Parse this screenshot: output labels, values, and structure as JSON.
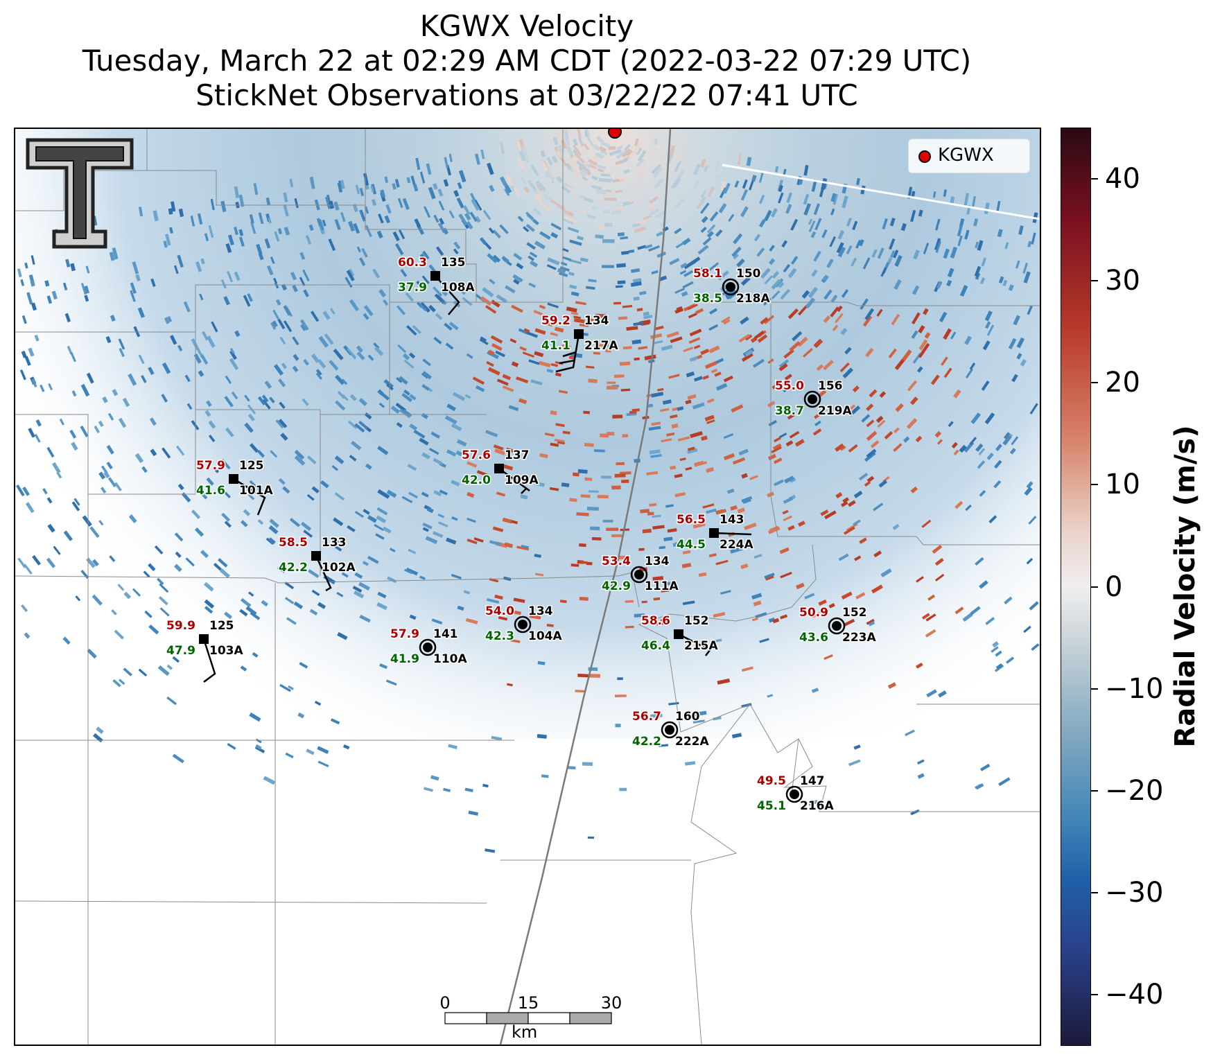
{
  "title": {
    "line1": "KGWX Velocity",
    "line2": "Tuesday, March 22 at 02:29 AM CDT (2022-03-22 07:29 UTC)",
    "line3": "StickNet Observations at 03/22/22 07:41 UTC"
  },
  "legend": {
    "label": "KGWX",
    "marker_color": "#e00000"
  },
  "colorbar": {
    "title": "Radial Velocity (m/s)",
    "range": [
      -45,
      45
    ],
    "ticks": [
      {
        "value": 40,
        "label": "40"
      },
      {
        "value": 30,
        "label": "30"
      },
      {
        "value": 20,
        "label": "20"
      },
      {
        "value": 10,
        "label": "10"
      },
      {
        "value": 0,
        "label": "0"
      },
      {
        "value": -10,
        "label": "−10"
      },
      {
        "value": -20,
        "label": "−20"
      },
      {
        "value": -30,
        "label": "−30"
      },
      {
        "value": -40,
        "label": "−40"
      }
    ]
  },
  "scalebar": {
    "labels": [
      "0",
      "15",
      "30"
    ],
    "unit": "km"
  },
  "logo": {
    "name": "Texas Tech double-T logo"
  },
  "colors": {
    "temperature": "#aa0000",
    "dewpoint": "#006400",
    "id": "#000000",
    "outbound": "#c0452a",
    "inbound": "#3a7fb5"
  },
  "stations": [
    {
      "id": "108A",
      "temp": "60.3",
      "dew": "37.9",
      "time": "135",
      "marker": "square"
    },
    {
      "id": "218A",
      "temp": "58.1",
      "dew": "38.5",
      "time": "150",
      "marker": "circle"
    },
    {
      "id": "217A",
      "temp": "59.2",
      "dew": "41.1",
      "time": "134",
      "marker": "square"
    },
    {
      "id": "219A",
      "temp": "55.0",
      "dew": "38.7",
      "time": "156",
      "marker": "circle"
    },
    {
      "id": "101A",
      "temp": "57.9",
      "dew": "41.6",
      "time": "125",
      "marker": "square"
    },
    {
      "id": "109A",
      "temp": "57.6",
      "dew": "42.0",
      "time": "137",
      "marker": "square"
    },
    {
      "id": "224A",
      "temp": "56.5",
      "dew": "44.5",
      "time": "143",
      "marker": "square"
    },
    {
      "id": "102A",
      "temp": "58.5",
      "dew": "42.2",
      "time": "133",
      "marker": "square"
    },
    {
      "id": "111A",
      "temp": "53.4",
      "dew": "42.9",
      "time": "134",
      "marker": "circle"
    },
    {
      "id": "103A",
      "temp": "59.9",
      "dew": "47.9",
      "time": "125",
      "marker": "square"
    },
    {
      "id": "104A",
      "temp": "54.0",
      "dew": "42.3",
      "time": "134",
      "marker": "circle"
    },
    {
      "id": "110A",
      "temp": "57.9",
      "dew": "41.9",
      "time": "141",
      "marker": "circle"
    },
    {
      "id": "215A",
      "temp": "58.6",
      "dew": "46.4",
      "time": "152",
      "marker": "square"
    },
    {
      "id": "223A",
      "temp": "50.9",
      "dew": "43.6",
      "time": "152",
      "marker": "circle"
    },
    {
      "id": "222A",
      "temp": "56.7",
      "dew": "42.2",
      "time": "160",
      "marker": "circle"
    },
    {
      "id": "216A",
      "temp": "49.5",
      "dew": "45.1",
      "time": "147",
      "marker": "circle"
    }
  ]
}
